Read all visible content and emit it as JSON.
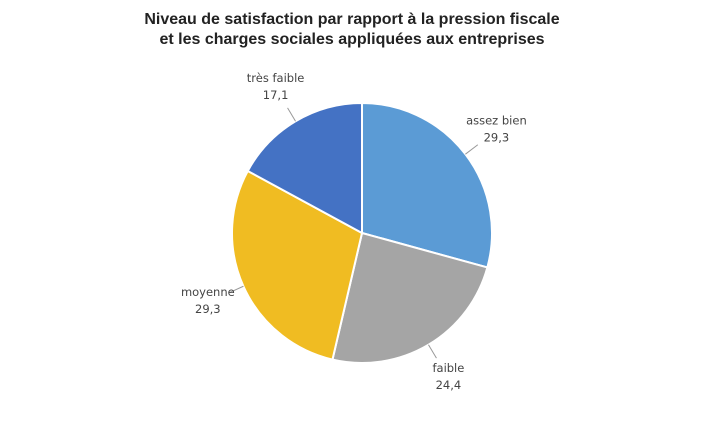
{
  "chart_data": {
    "type": "pie",
    "title": [
      "Niveau de satisfaction par rapport à la pression fiscale",
      "et les charges sociales appliquées aux entreprises"
    ],
    "categories": [
      "assez bien",
      "faible",
      "moyenne",
      "très faible"
    ],
    "values": [
      29.3,
      24.4,
      29.3,
      17.1
    ],
    "value_labels": [
      "29,3",
      "24,4",
      "29,3",
      "17,1"
    ],
    "colors": [
      "#5b9bd5",
      "#a5a5a5",
      "#f0bc22",
      "#4472c4"
    ]
  }
}
